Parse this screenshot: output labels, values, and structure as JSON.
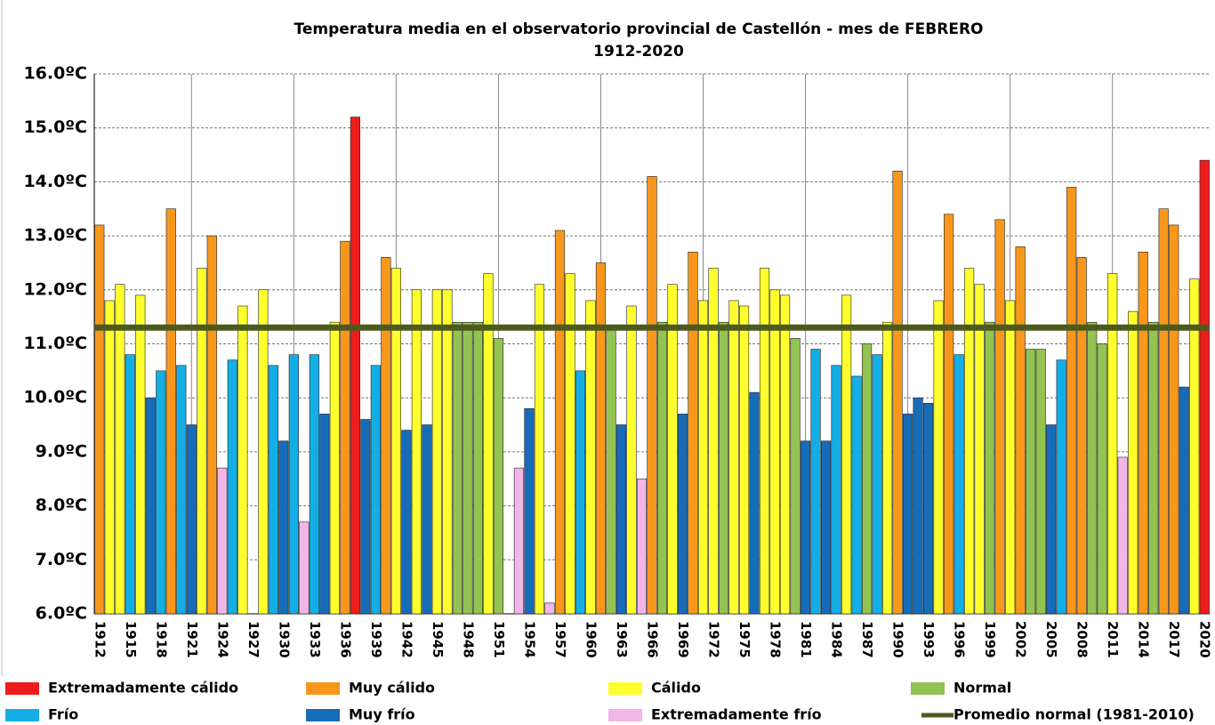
{
  "chart_data": {
    "type": "bar",
    "title": "Temperatura media en el observatorio provincial de Castellón - mes de FEBRERO",
    "subtitle": "1912-2020",
    "categories": [
      "1912",
      null,
      null,
      "1915",
      null,
      null,
      "1918",
      null,
      null,
      "1921",
      null,
      null,
      "1924",
      null,
      null,
      "1927",
      null,
      null,
      "1930",
      null,
      null,
      "1933",
      null,
      null,
      "1936",
      null,
      null,
      "1939",
      null,
      null,
      "1942",
      null,
      null,
      "1945",
      null,
      null,
      "1948",
      null,
      null,
      "1951",
      null,
      null,
      "1954",
      null,
      null,
      "1957",
      null,
      null,
      "1960",
      null,
      null,
      "1963",
      null,
      null,
      "1966",
      null,
      null,
      "1969",
      null,
      null,
      "1972",
      null,
      null,
      "1975",
      null,
      null,
      "1978",
      null,
      null,
      "1981",
      null,
      null,
      "1984",
      null,
      null,
      "1987",
      null,
      null,
      "1990",
      null,
      null,
      "1993",
      null,
      null,
      "1996",
      null,
      null,
      "1999",
      null,
      null,
      "2002",
      null,
      null,
      "2005",
      null,
      null,
      "2008",
      null,
      null,
      "2011",
      null,
      null,
      "2014",
      null,
      null,
      "2017",
      null,
      null,
      "2020"
    ],
    "values": [
      13.2,
      11.8,
      12.1,
      10.8,
      11.9,
      10.0,
      10.5,
      13.5,
      10.6,
      9.5,
      12.4,
      13.0,
      8.7,
      10.7,
      11.7,
      null,
      12.0,
      10.6,
      9.2,
      10.8,
      7.7,
      10.8,
      9.7,
      11.4,
      12.9,
      15.2,
      9.6,
      10.6,
      12.6,
      12.4,
      9.4,
      12.0,
      9.5,
      12.0,
      12.0,
      11.4,
      11.4,
      11.4,
      12.3,
      11.1,
      null,
      8.7,
      9.8,
      12.1,
      6.2,
      13.1,
      12.3,
      10.5,
      11.8,
      12.5,
      11.3,
      9.5,
      11.7,
      8.5,
      14.1,
      11.4,
      12.1,
      9.7,
      12.7,
      11.8,
      12.4,
      11.4,
      11.8,
      11.7,
      10.1,
      12.4,
      12.0,
      11.9,
      11.1,
      9.2,
      10.9,
      9.2,
      10.6,
      11.9,
      10.4,
      11.0,
      10.8,
      11.4,
      14.2,
      9.7,
      10.0,
      9.9,
      11.8,
      13.4,
      10.8,
      12.4,
      12.1,
      11.4,
      13.3,
      11.8,
      12.8,
      10.9,
      10.9,
      9.5,
      10.7,
      13.9,
      12.6,
      11.4,
      11.0,
      12.3,
      8.9,
      11.6,
      12.7,
      11.4,
      13.5,
      13.2,
      10.2,
      12.2,
      14.4
    ],
    "colors": [
      "#f7981d",
      "#ffff2e",
      "#ffff2e",
      "#14aee6",
      "#ffff2e",
      "#166cb8",
      "#14aee6",
      "#f7981d",
      "#14aee6",
      "#166cb8",
      "#ffff2e",
      "#f7981d",
      "#f2b6e8",
      "#14aee6",
      "#ffff2e",
      null,
      "#ffff2e",
      "#14aee6",
      "#166cb8",
      "#14aee6",
      "#f2b6e8",
      "#14aee6",
      "#166cb8",
      "#ffff2e",
      "#f7981d",
      "#ee1c1c",
      "#166cb8",
      "#14aee6",
      "#f7981d",
      "#ffff2e",
      "#166cb8",
      "#ffff2e",
      "#166cb8",
      "#ffff2e",
      "#ffff2e",
      "#92c353",
      "#92c353",
      "#92c353",
      "#ffff2e",
      "#92c353",
      null,
      "#f2b6e8",
      "#166cb8",
      "#ffff2e",
      "#f2b6e8",
      "#f7981d",
      "#ffff2e",
      "#14aee6",
      "#ffff2e",
      "#f7981d",
      "#92c353",
      "#166cb8",
      "#ffff2e",
      "#f2b6e8",
      "#f7981d",
      "#92c353",
      "#ffff2e",
      "#166cb8",
      "#f7981d",
      "#ffff2e",
      "#ffff2e",
      "#92c353",
      "#ffff2e",
      "#ffff2e",
      "#166cb8",
      "#ffff2e",
      "#ffff2e",
      "#ffff2e",
      "#92c353",
      "#166cb8",
      "#14aee6",
      "#166cb8",
      "#14aee6",
      "#ffff2e",
      "#14aee6",
      "#92c353",
      "#14aee6",
      "#ffff2e",
      "#f7981d",
      "#166cb8",
      "#166cb8",
      "#166cb8",
      "#ffff2e",
      "#f7981d",
      "#14aee6",
      "#ffff2e",
      "#ffff2e",
      "#92c353",
      "#f7981d",
      "#ffff2e",
      "#f7981d",
      "#92c353",
      "#92c353",
      "#166cb8",
      "#14aee6",
      "#f7981d",
      "#f7981d",
      "#92c353",
      "#92c353",
      "#ffff2e",
      "#f2b6e8",
      "#ffff2e",
      "#f7981d",
      "#92c353",
      "#f7981d",
      "#f7981d",
      "#166cb8",
      "#ffff2e",
      "#ee1c1c"
    ],
    "classes": [
      {
        "name": "Extremadamente cálido",
        "color": "#ee1c1c"
      },
      {
        "name": "Muy cálido",
        "color": "#f7981d"
      },
      {
        "name": "Cálido",
        "color": "#ffff2e"
      },
      {
        "name": "Normal",
        "color": "#92c353"
      },
      {
        "name": "Frío",
        "color": "#14aee6"
      },
      {
        "name": "Muy frío",
        "color": "#166cb8"
      },
      {
        "name": "Extremadamente frío",
        "color": "#f2b6e8"
      }
    ],
    "average": {
      "name": "Promedio normal (1981-2010)",
      "value": 11.3,
      "color": "#4d5a1e"
    },
    "ylim": [
      6,
      16
    ],
    "yticks": [
      {
        "value": 6,
        "label": "6.0ºC"
      },
      {
        "value": 7,
        "label": "7.0ºC"
      },
      {
        "value": 8,
        "label": "8.0ºC"
      },
      {
        "value": 9,
        "label": "9.0ºC"
      },
      {
        "value": 10,
        "label": "10.0ºC"
      },
      {
        "value": 11,
        "label": "11.0ºC"
      },
      {
        "value": 12,
        "label": "12.0ºC"
      },
      {
        "value": 13,
        "label": "13.0ºC"
      },
      {
        "value": 14,
        "label": "14.0ºC"
      },
      {
        "value": 15,
        "label": "15.0ºC"
      },
      {
        "value": 16,
        "label": "16.0ºC"
      }
    ],
    "grid": true
  }
}
